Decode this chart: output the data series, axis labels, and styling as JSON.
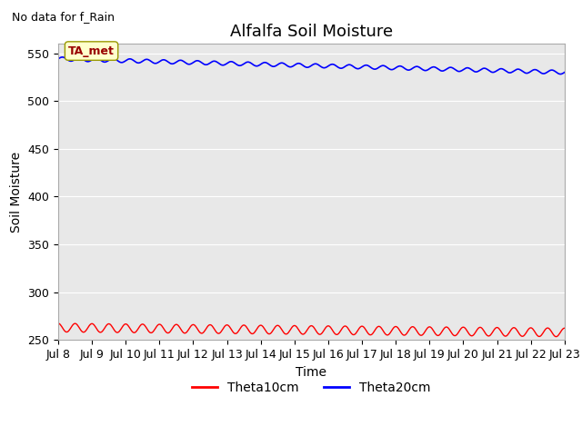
{
  "title": "Alfalfa Soil Moisture",
  "xlabel": "Time",
  "ylabel": "Soil Moisture",
  "no_data_text": "No data for f_Rain",
  "annotation_text": "TA_met",
  "ylim": [
    250,
    560
  ],
  "yticks": [
    250,
    300,
    350,
    400,
    450,
    500,
    550
  ],
  "x_tick_days": [
    8,
    9,
    10,
    11,
    12,
    13,
    14,
    15,
    16,
    17,
    18,
    19,
    20,
    21,
    22,
    23
  ],
  "x_tick_labels": [
    "Jul 8",
    "Jul 9",
    "Jul 10",
    "Jul 11",
    "Jul 12",
    "Jul 13",
    "Jul 14",
    "Jul 15",
    "Jul 16",
    "Jul 17",
    "Jul 18",
    "Jul 19",
    "Jul 20",
    "Jul 21",
    "Jul 22",
    "Jul 23"
  ],
  "theta10_color": "#ff0000",
  "theta20_color": "#0000ff",
  "theta10_label": "Theta10cm",
  "theta20_label": "Theta20cm",
  "background_color": "#e8e8e8",
  "title_fontsize": 13,
  "axis_label_fontsize": 10,
  "tick_fontsize": 9,
  "legend_fontsize": 10,
  "annotation_facecolor": "#ffffcc",
  "annotation_edgecolor": "#999900",
  "annotation_textcolor": "#990000"
}
